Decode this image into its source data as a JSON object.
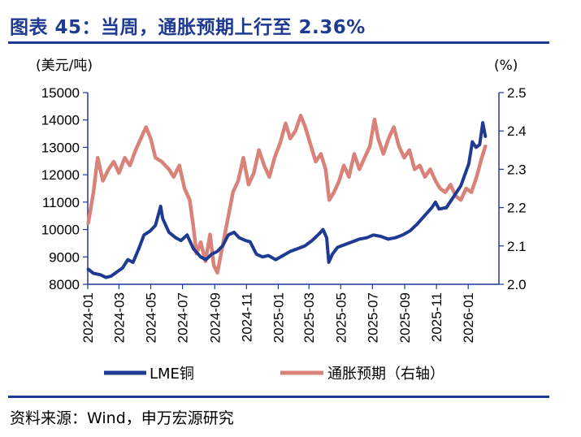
{
  "header": {
    "title": "图表 45：当周，通胀预期上行至 2.36%"
  },
  "footer": {
    "source": "资料来源：Wind，申万宏源研究"
  },
  "chart_data": {
    "type": "line",
    "left_unit": "(美元/吨)",
    "right_unit": "(%)",
    "y_left_range": [
      8000,
      15000
    ],
    "y_left_ticks": [
      "15000",
      "14000",
      "13000",
      "12000",
      "11000",
      "10000",
      "9000",
      "8000"
    ],
    "y_right_range": [
      2.0,
      2.5
    ],
    "y_right_ticks": [
      "2.5",
      "2.4",
      "2.3",
      "2.2",
      "2.1",
      "2.0"
    ],
    "x_range": [
      "2024-01",
      "2026-03"
    ],
    "x_ticks": [
      "2024-01",
      "2024-03",
      "2024-05",
      "2024-07",
      "2024-09",
      "2024-11",
      "2025-01",
      "2025-03",
      "2025-05",
      "2025-07",
      "2025-09",
      "2025-11",
      "2026-01"
    ],
    "grid": false,
    "legend_position": "bottom",
    "series": [
      {
        "name": "LME铜",
        "axis": "left",
        "color": "#1F3A93",
        "points": [
          [
            "2024-01-02",
            8550
          ],
          [
            "2024-01-12",
            8400
          ],
          [
            "2024-01-25",
            8350
          ],
          [
            "2024-02-05",
            8250
          ],
          [
            "2024-02-15",
            8300
          ],
          [
            "2024-02-26",
            8450
          ],
          [
            "2024-03-08",
            8600
          ],
          [
            "2024-03-18",
            8900
          ],
          [
            "2024-03-28",
            8800
          ],
          [
            "2024-04-08",
            9300
          ],
          [
            "2024-04-18",
            9800
          ],
          [
            "2024-04-30",
            9950
          ],
          [
            "2024-05-10",
            10150
          ],
          [
            "2024-05-20",
            10850
          ],
          [
            "2024-05-24",
            10400
          ],
          [
            "2024-06-05",
            9900
          ],
          [
            "2024-06-18",
            9700
          ],
          [
            "2024-06-28",
            9600
          ],
          [
            "2024-07-10",
            9800
          ],
          [
            "2024-07-22",
            9300
          ],
          [
            "2024-08-05",
            9000
          ],
          [
            "2024-08-15",
            8900
          ],
          [
            "2024-08-26",
            9100
          ],
          [
            "2024-09-06",
            9200
          ],
          [
            "2024-09-16",
            9400
          ],
          [
            "2024-09-27",
            9800
          ],
          [
            "2024-10-08",
            9900
          ],
          [
            "2024-10-18",
            9700
          ],
          [
            "2024-10-30",
            9600
          ],
          [
            "2024-11-08",
            9550
          ],
          [
            "2024-11-20",
            9100
          ],
          [
            "2024-12-02",
            9000
          ],
          [
            "2024-12-13",
            9050
          ],
          [
            "2024-12-27",
            8900
          ],
          [
            "2025-01-10",
            9050
          ],
          [
            "2025-01-24",
            9200
          ],
          [
            "2025-02-07",
            9300
          ],
          [
            "2025-02-21",
            9400
          ],
          [
            "2025-03-07",
            9600
          ],
          [
            "2025-03-21",
            9850
          ],
          [
            "2025-03-28",
            10000
          ],
          [
            "2025-04-04",
            9700
          ],
          [
            "2025-04-08",
            8800
          ],
          [
            "2025-04-15",
            9100
          ],
          [
            "2025-04-25",
            9350
          ],
          [
            "2025-05-09",
            9450
          ],
          [
            "2025-05-23",
            9550
          ],
          [
            "2025-06-06",
            9650
          ],
          [
            "2025-06-20",
            9700
          ],
          [
            "2025-07-03",
            9800
          ],
          [
            "2025-07-17",
            9750
          ],
          [
            "2025-07-31",
            9650
          ],
          [
            "2025-08-14",
            9700
          ],
          [
            "2025-08-28",
            9800
          ],
          [
            "2025-09-11",
            9950
          ],
          [
            "2025-09-25",
            10200
          ],
          [
            "2025-10-09",
            10500
          ],
          [
            "2025-10-23",
            10800
          ],
          [
            "2025-10-30",
            11000
          ],
          [
            "2025-11-06",
            10750
          ],
          [
            "2025-11-20",
            10800
          ],
          [
            "2025-12-04",
            11200
          ],
          [
            "2025-12-18",
            11600
          ],
          [
            "2026-01-02",
            12400
          ],
          [
            "2026-01-09",
            13200
          ],
          [
            "2026-01-16",
            13000
          ],
          [
            "2026-01-23",
            13100
          ],
          [
            "2026-01-29",
            13900
          ],
          [
            "2026-02-03",
            13400
          ]
        ]
      },
      {
        "name": "通胀预期（右轴）",
        "axis": "right",
        "color": "#D9827A",
        "points": [
          [
            "2024-01-02",
            2.16
          ],
          [
            "2024-01-12",
            2.24
          ],
          [
            "2024-01-20",
            2.33
          ],
          [
            "2024-01-30",
            2.27
          ],
          [
            "2024-02-10",
            2.3
          ],
          [
            "2024-02-20",
            2.32
          ],
          [
            "2024-03-01",
            2.29
          ],
          [
            "2024-03-12",
            2.33
          ],
          [
            "2024-03-22",
            2.31
          ],
          [
            "2024-04-02",
            2.35
          ],
          [
            "2024-04-12",
            2.38
          ],
          [
            "2024-04-22",
            2.41
          ],
          [
            "2024-05-01",
            2.38
          ],
          [
            "2024-05-10",
            2.33
          ],
          [
            "2024-05-22",
            2.32
          ],
          [
            "2024-06-05",
            2.3
          ],
          [
            "2024-06-14",
            2.28
          ],
          [
            "2024-06-25",
            2.31
          ],
          [
            "2024-07-05",
            2.25
          ],
          [
            "2024-07-15",
            2.22
          ],
          [
            "2024-07-22",
            2.15
          ],
          [
            "2024-07-28",
            2.08
          ],
          [
            "2024-08-05",
            2.11
          ],
          [
            "2024-08-14",
            2.06
          ],
          [
            "2024-08-23",
            2.13
          ],
          [
            "2024-08-30",
            2.05
          ],
          [
            "2024-09-06",
            2.03
          ],
          [
            "2024-09-16",
            2.1
          ],
          [
            "2024-09-26",
            2.17
          ],
          [
            "2024-10-06",
            2.24
          ],
          [
            "2024-10-16",
            2.27
          ],
          [
            "2024-10-26",
            2.33
          ],
          [
            "2024-11-05",
            2.26
          ],
          [
            "2024-11-15",
            2.29
          ],
          [
            "2024-11-25",
            2.35
          ],
          [
            "2024-12-05",
            2.31
          ],
          [
            "2024-12-15",
            2.28
          ],
          [
            "2024-12-25",
            2.33
          ],
          [
            "2025-01-05",
            2.37
          ],
          [
            "2025-01-15",
            2.42
          ],
          [
            "2025-01-24",
            2.38
          ],
          [
            "2025-02-03",
            2.4
          ],
          [
            "2025-02-13",
            2.44
          ],
          [
            "2025-02-22",
            2.41
          ],
          [
            "2025-03-05",
            2.36
          ],
          [
            "2025-03-14",
            2.32
          ],
          [
            "2025-03-24",
            2.34
          ],
          [
            "2025-04-02",
            2.3
          ],
          [
            "2025-04-09",
            2.22
          ],
          [
            "2025-04-18",
            2.24
          ],
          [
            "2025-04-28",
            2.27
          ],
          [
            "2025-05-07",
            2.31
          ],
          [
            "2025-05-17",
            2.28
          ],
          [
            "2025-05-27",
            2.34
          ],
          [
            "2025-06-06",
            2.3
          ],
          [
            "2025-06-16",
            2.33
          ],
          [
            "2025-06-26",
            2.36
          ],
          [
            "2025-07-05",
            2.43
          ],
          [
            "2025-07-12",
            2.38
          ],
          [
            "2025-07-22",
            2.34
          ],
          [
            "2025-08-01",
            2.38
          ],
          [
            "2025-08-11",
            2.41
          ],
          [
            "2025-08-21",
            2.36
          ],
          [
            "2025-08-31",
            2.33
          ],
          [
            "2025-09-10",
            2.35
          ],
          [
            "2025-09-20",
            2.3
          ],
          [
            "2025-09-30",
            2.31
          ],
          [
            "2025-10-10",
            2.28
          ],
          [
            "2025-10-20",
            2.3
          ],
          [
            "2025-10-30",
            2.27
          ],
          [
            "2025-11-08",
            2.25
          ],
          [
            "2025-11-18",
            2.24
          ],
          [
            "2025-11-28",
            2.26
          ],
          [
            "2025-12-08",
            2.23
          ],
          [
            "2025-12-18",
            2.22
          ],
          [
            "2025-12-28",
            2.25
          ],
          [
            "2026-01-07",
            2.24
          ],
          [
            "2026-01-17",
            2.28
          ],
          [
            "2026-01-27",
            2.33
          ],
          [
            "2026-02-03",
            2.36
          ]
        ]
      }
    ]
  }
}
